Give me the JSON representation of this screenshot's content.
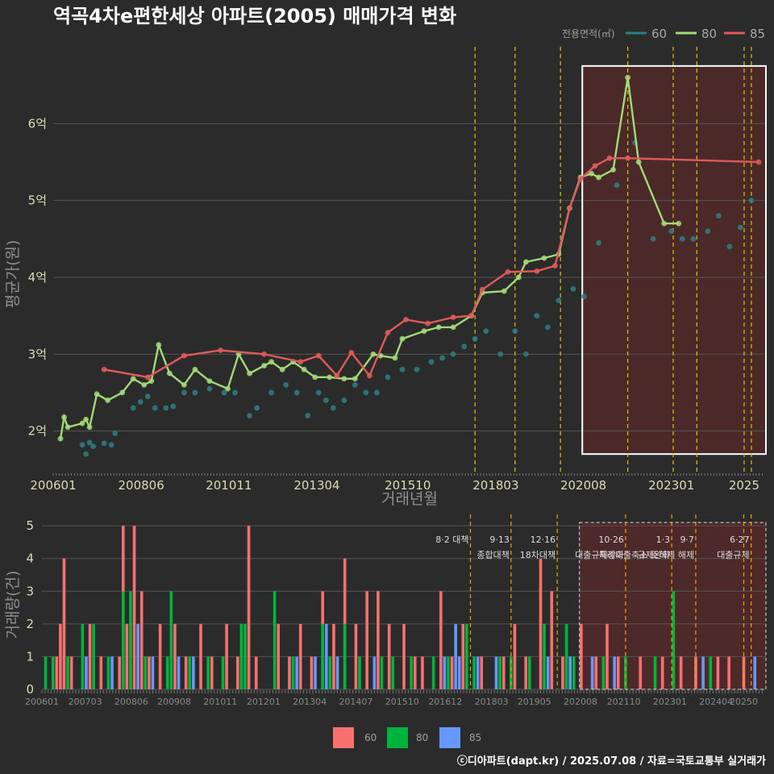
{
  "title": "역곡4차e편한세상 아파트(2005) 매매가격 변화",
  "footer": "ⓒ디아파트(dapt.kr) / 2025.07.08 / 자료=국토교통부 실거래가",
  "colors": {
    "s60": "#2e7f82",
    "s80": "#a3d977",
    "s85": "#e05a5a",
    "bar60": "#f87070",
    "bar80": "#00b33c",
    "bar85": "#6699ff",
    "vline": "#d8c800",
    "vline2": "#e6a800",
    "highlight": "#5a2a2a"
  },
  "chart_data": [
    {
      "type": "line",
      "title": "역곡4차e편한세상 아파트(2005) 매매가격 변화",
      "xlabel": "거래년월",
      "ylabel": "평균가(원)",
      "xlim": [
        2006.0,
        2025.6
      ],
      "ylim": [
        1.45,
        7.0
      ],
      "x_ticks": [
        "200601",
        "200806",
        "201011",
        "201304",
        "201510",
        "201803",
        "202008",
        "202301",
        "2025"
      ],
      "y_ticks": [
        "2억",
        "3억",
        "4억",
        "5억",
        "6억"
      ],
      "legend_title": "전용면적(㎡)",
      "legend_position": "top-right",
      "event_lines": [
        2017.6,
        2018.7,
        2019.95,
        2021.8,
        2023.05,
        2023.7,
        2025.0,
        2025.2
      ],
      "highlight": {
        "x0": 2020.55,
        "x1": 2025.6,
        "y0": 1.7,
        "y1": 6.75
      },
      "series": [
        {
          "name": "60",
          "color": "#2e7f82",
          "x": [
            2006.8,
            2006.9,
            2007.0,
            2007.1,
            2007.4,
            2007.6,
            2007.7,
            2008.2,
            2008.4,
            2008.6,
            2008.8,
            2009.1,
            2009.3,
            2009.6,
            2009.9,
            2010.3,
            2010.7,
            2011.0,
            2011.4,
            2011.6,
            2012.0,
            2012.4,
            2012.7,
            2013.0,
            2013.3,
            2013.5,
            2013.7,
            2014.0,
            2014.3,
            2014.6,
            2014.9,
            2015.2,
            2015.6,
            2016.0,
            2016.4,
            2016.7,
            2017.0,
            2017.3,
            2017.6,
            2017.9,
            2018.3,
            2018.7,
            2019.0,
            2019.3,
            2019.6,
            2019.9,
            2020.3,
            2020.6,
            2021.0,
            2021.5,
            2022.0,
            2022.5,
            2023.0,
            2023.3,
            2023.6,
            2024.0,
            2024.3,
            2024.6,
            2024.9,
            2025.2
          ],
          "y": [
            1.82,
            1.7,
            1.85,
            1.8,
            1.84,
            1.82,
            1.97,
            2.3,
            2.38,
            2.45,
            2.3,
            2.3,
            2.32,
            2.5,
            2.5,
            2.55,
            2.5,
            2.5,
            2.2,
            2.3,
            2.5,
            2.6,
            2.5,
            2.2,
            2.5,
            2.4,
            2.3,
            2.4,
            2.6,
            2.5,
            2.5,
            2.7,
            2.8,
            2.8,
            2.9,
            2.95,
            3.0,
            3.1,
            3.2,
            3.3,
            3.0,
            3.3,
            3.0,
            3.5,
            3.35,
            3.7,
            3.85,
            3.75,
            4.45,
            5.2,
            5.75,
            4.5,
            4.6,
            4.5,
            4.5,
            4.6,
            4.8,
            4.4,
            4.65,
            5.0
          ]
        },
        {
          "name": "80",
          "color": "#a3d977",
          "x": [
            2006.2,
            2006.3,
            2006.4,
            2006.8,
            2006.9,
            2007.0,
            2007.2,
            2007.5,
            2007.9,
            2008.2,
            2008.5,
            2008.7,
            2008.9,
            2009.2,
            2009.6,
            2009.9,
            2010.3,
            2010.8,
            2011.1,
            2011.4,
            2011.8,
            2012.0,
            2012.3,
            2012.6,
            2012.9,
            2013.2,
            2013.6,
            2014.0,
            2014.3,
            2014.8,
            2015.0,
            2015.4,
            2015.6,
            2016.2,
            2016.6,
            2017.0,
            2017.5,
            2017.8,
            2018.4,
            2018.8,
            2019.0,
            2019.5,
            2019.9,
            2020.2,
            2020.5,
            2020.8,
            2021.0,
            2021.4,
            2021.8,
            2022.1,
            2022.8,
            2023.2
          ],
          "y": [
            1.9,
            2.18,
            2.05,
            2.1,
            2.15,
            2.05,
            2.48,
            2.4,
            2.5,
            2.68,
            2.6,
            2.65,
            3.12,
            2.75,
            2.6,
            2.8,
            2.65,
            2.55,
            3.0,
            2.75,
            2.85,
            2.9,
            2.8,
            2.9,
            2.8,
            2.7,
            2.7,
            2.68,
            2.68,
            3.0,
            2.98,
            2.95,
            3.2,
            3.3,
            3.35,
            3.35,
            3.5,
            3.8,
            3.82,
            4.0,
            4.2,
            4.25,
            4.3,
            4.9,
            5.3,
            5.35,
            5.3,
            5.4,
            6.6,
            5.5,
            4.7,
            4.7
          ]
        },
        {
          "name": "85",
          "color": "#e05a5a",
          "x": [
            2007.4,
            2008.6,
            2009.6,
            2010.6,
            2011.8,
            2012.8,
            2013.3,
            2013.8,
            2014.2,
            2014.7,
            2015.2,
            2015.7,
            2016.3,
            2017.0,
            2017.5,
            2017.8,
            2018.5,
            2019.3,
            2019.8,
            2020.2,
            2020.5,
            2020.9,
            2021.3,
            2021.8,
            2025.4
          ],
          "y": [
            2.8,
            2.7,
            2.98,
            3.05,
            3.0,
            2.9,
            2.98,
            2.72,
            3.02,
            2.72,
            3.28,
            3.45,
            3.4,
            3.48,
            3.5,
            3.84,
            4.07,
            4.08,
            4.15,
            4.9,
            5.28,
            5.45,
            5.55,
            5.55,
            5.5
          ]
        }
      ]
    },
    {
      "type": "bar",
      "xlabel": "",
      "ylabel": "거래량(건)",
      "xlim": [
        2006.0,
        2025.6
      ],
      "ylim": [
        0,
        5.3
      ],
      "x_ticks": [
        "200601",
        "200703",
        "200806",
        "200908",
        "201011",
        "201201",
        "201304",
        "201407",
        "201510",
        "201612",
        "201803",
        "201905",
        "202008",
        "202110",
        "202301",
        "202404",
        "20250"
      ],
      "y_ticks": [
        "0",
        "1",
        "2",
        "3",
        "4",
        "5"
      ],
      "legend_position": "bottom",
      "highlight": {
        "x0": 2020.55,
        "x1": 2025.6,
        "y0": 0,
        "y1": 5.1
      },
      "events": [
        {
          "x": 2017.6,
          "line1": "8·2 대책",
          "line2": ""
        },
        {
          "x": 2018.7,
          "line1": "9·13",
          "line2": "종합대책"
        },
        {
          "x": 2019.95,
          "line1": "12·16",
          "line2": "18차대책"
        },
        {
          "x": 2021.8,
          "line1": "10·26",
          "line2": "대출규제강화"
        },
        {
          "x": 2023.05,
          "line1": "1·3",
          "line2": "규제완화"
        },
        {
          "x": 2023.7,
          "line1": "9·7",
          "line2": "특례대출축소 토허제 해제"
        },
        {
          "x": 2025.0,
          "line1": "",
          "line2": ""
        },
        {
          "x": 2025.2,
          "line1": "6·27",
          "line2": "대출규제"
        }
      ],
      "series": [
        {
          "name": "60",
          "color": "#f87070",
          "values": [
            [
              2006.4,
              1
            ],
            [
              2006.5,
              2
            ],
            [
              2006.6,
              4
            ],
            [
              2006.8,
              1
            ],
            [
              2007.3,
              2
            ],
            [
              2007.6,
              1
            ],
            [
              2008.1,
              1
            ],
            [
              2008.2,
              5
            ],
            [
              2008.3,
              2
            ],
            [
              2008.5,
              5
            ],
            [
              2008.7,
              3
            ],
            [
              2008.9,
              1
            ],
            [
              2009.2,
              2
            ],
            [
              2009.6,
              2
            ],
            [
              2009.9,
              1
            ],
            [
              2010.3,
              2
            ],
            [
              2010.6,
              1
            ],
            [
              2011.0,
              2
            ],
            [
              2011.3,
              1
            ],
            [
              2011.6,
              5
            ],
            [
              2011.8,
              1
            ],
            [
              2012.4,
              2
            ],
            [
              2012.7,
              1
            ],
            [
              2013.0,
              2
            ],
            [
              2013.3,
              1
            ],
            [
              2013.6,
              3
            ],
            [
              2013.9,
              2
            ],
            [
              2014.2,
              4
            ],
            [
              2014.5,
              2
            ],
            [
              2014.8,
              3
            ],
            [
              2015.1,
              3
            ],
            [
              2015.4,
              2
            ],
            [
              2015.8,
              2
            ],
            [
              2016.1,
              1
            ],
            [
              2016.3,
              1
            ],
            [
              2016.8,
              3
            ],
            [
              2017.1,
              1
            ],
            [
              2017.4,
              2
            ],
            [
              2017.9,
              1
            ],
            [
              2018.5,
              1
            ],
            [
              2018.8,
              2
            ],
            [
              2019.1,
              1
            ],
            [
              2019.5,
              4
            ],
            [
              2019.8,
              3
            ],
            [
              2020.1,
              1
            ],
            [
              2020.6,
              2
            ],
            [
              2021.0,
              1
            ],
            [
              2021.3,
              2
            ],
            [
              2021.6,
              1
            ],
            [
              2022.2,
              1
            ],
            [
              2022.8,
              1
            ],
            [
              2023.3,
              1
            ],
            [
              2023.7,
              1
            ],
            [
              2024.3,
              1
            ],
            [
              2024.6,
              1
            ],
            [
              2025.0,
              1
            ]
          ]
        },
        {
          "name": "80",
          "color": "#00b33c",
          "values": [
            [
              2006.1,
              1
            ],
            [
              2006.3,
              1
            ],
            [
              2006.7,
              1
            ],
            [
              2007.1,
              2
            ],
            [
              2007.4,
              2
            ],
            [
              2007.8,
              1
            ],
            [
              2008.2,
              3
            ],
            [
              2008.4,
              3
            ],
            [
              2008.8,
              1
            ],
            [
              2009.4,
              1
            ],
            [
              2009.5,
              3
            ],
            [
              2010.0,
              1
            ],
            [
              2010.5,
              1
            ],
            [
              2010.9,
              1
            ],
            [
              2011.4,
              2
            ],
            [
              2011.5,
              2
            ],
            [
              2012.3,
              3
            ],
            [
              2012.8,
              1
            ],
            [
              2013.6,
              2
            ],
            [
              2013.8,
              1
            ],
            [
              2014.2,
              2
            ],
            [
              2014.6,
              1
            ],
            [
              2015.2,
              1
            ],
            [
              2015.5,
              1
            ],
            [
              2016.0,
              1
            ],
            [
              2016.6,
              1
            ],
            [
              2017.0,
              1
            ],
            [
              2017.5,
              2
            ],
            [
              2017.7,
              1
            ],
            [
              2018.4,
              1
            ],
            [
              2018.7,
              1
            ],
            [
              2019.2,
              1
            ],
            [
              2019.6,
              2
            ],
            [
              2020.2,
              2
            ],
            [
              2020.4,
              1
            ],
            [
              2021.2,
              1
            ],
            [
              2021.8,
              1
            ],
            [
              2022.6,
              1
            ],
            [
              2023.1,
              3
            ],
            [
              2024.1,
              1
            ]
          ]
        },
        {
          "name": "85",
          "color": "#6699ff",
          "values": [
            [
              2007.2,
              1
            ],
            [
              2007.9,
              1
            ],
            [
              2008.6,
              2
            ],
            [
              2009.0,
              1
            ],
            [
              2009.7,
              1
            ],
            [
              2010.1,
              1
            ],
            [
              2012.9,
              1
            ],
            [
              2013.4,
              1
            ],
            [
              2013.7,
              2
            ],
            [
              2014.0,
              1
            ],
            [
              2015.0,
              1
            ],
            [
              2016.9,
              1
            ],
            [
              2017.2,
              2
            ],
            [
              2017.3,
              1
            ],
            [
              2017.8,
              1
            ],
            [
              2018.3,
              1
            ],
            [
              2019.7,
              1
            ],
            [
              2020.3,
              1
            ],
            [
              2020.9,
              1
            ],
            [
              2021.5,
              1
            ],
            [
              2023.9,
              1
            ],
            [
              2025.3,
              1
            ]
          ]
        }
      ]
    }
  ]
}
